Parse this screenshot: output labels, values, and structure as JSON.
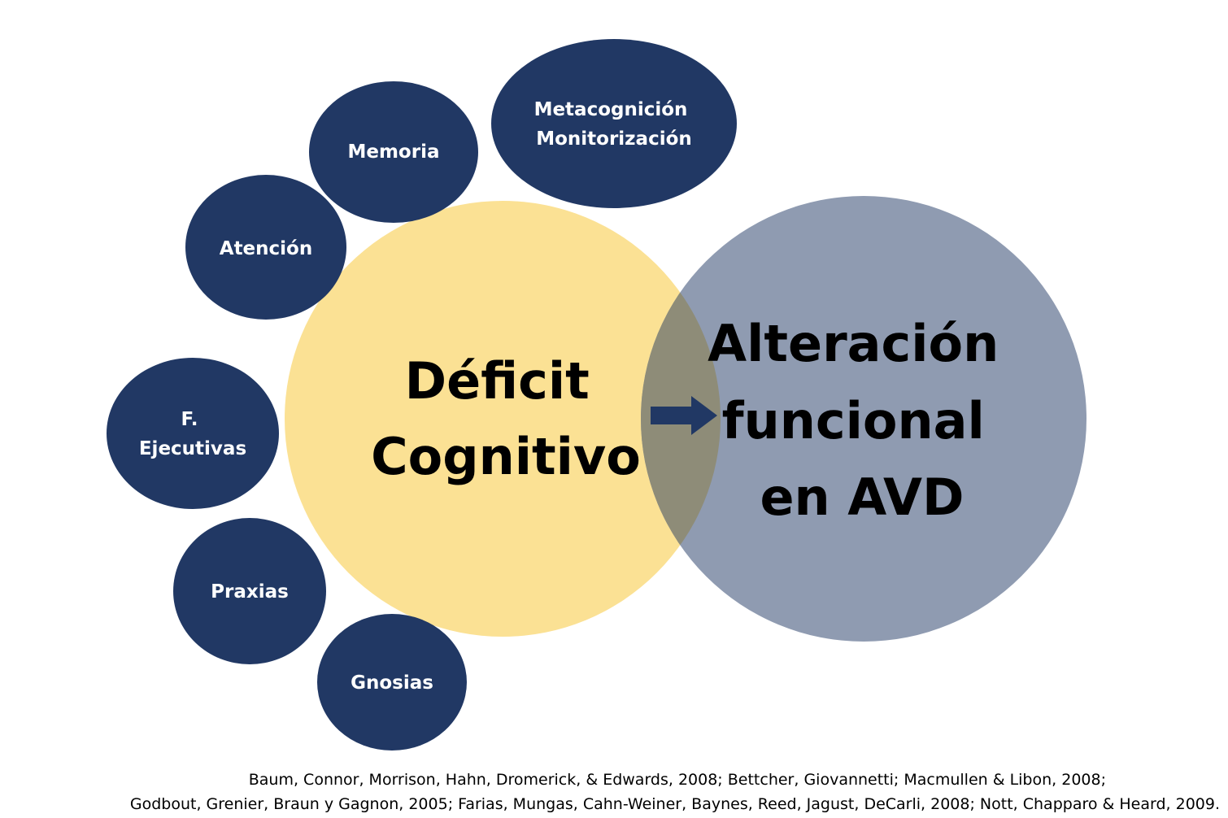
{
  "diagram": {
    "main_left_label": [
      "Déficit",
      "Cognitivo"
    ],
    "main_right_label": [
      "Alteración",
      "funcional",
      "en AVD"
    ],
    "domains": {
      "metacognicion": [
        "Metacognición",
        "Monitorización"
      ],
      "memoria": [
        "Memoria"
      ],
      "atencion": [
        "Atención"
      ],
      "ejecutivas": [
        "F.",
        "Ejecutivas"
      ],
      "praxias": [
        "Praxias"
      ],
      "gnosias": [
        "Gnosias"
      ]
    }
  },
  "colors": {
    "navy": "#213864",
    "yellow": "#FBE194",
    "slate": "#8F9BB1",
    "overlap": "#8E8C78"
  },
  "references": {
    "line1": "Baum, Connor, Morrison, Hahn, Dromerick, & Edwards, 2008; Bettcher, Giovannetti;  Macmullen  & Libon, 2008;",
    "line2": "Godbout, Grenier, Braun y Gagnon, 2005; Farias, Mungas, Cahn-Weiner, Baynes, Reed, Jagust, DeCarli, 2008; Nott, Chapparo & Heard, 2009."
  }
}
